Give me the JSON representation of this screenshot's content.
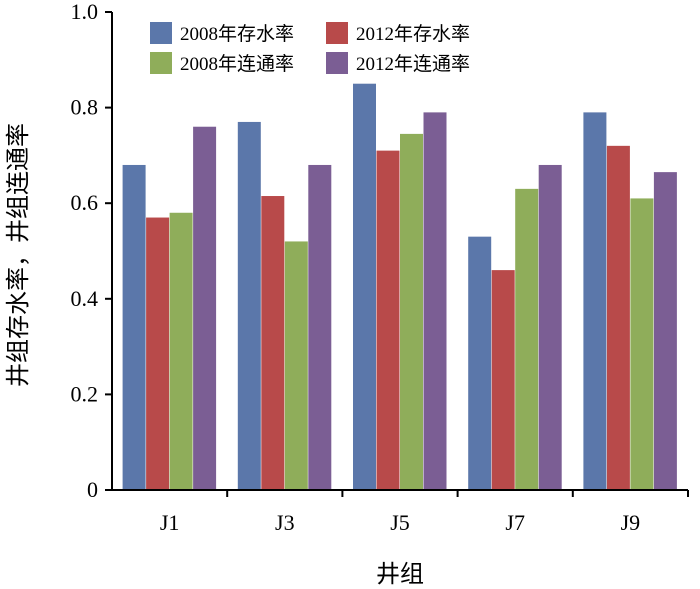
{
  "chart_data": {
    "type": "bar",
    "title": "",
    "xlabel": "井组",
    "ylabel": "井组存水率，井组连通率",
    "categories": [
      "J1",
      "J3",
      "J5",
      "J7",
      "J9"
    ],
    "ylim": [
      0,
      1.0
    ],
    "yticks": [
      "0",
      "0.2",
      "0.4",
      "0.6",
      "0.8",
      "1.0"
    ],
    "grid": false,
    "legend_position": "top",
    "series": [
      {
        "name": "2008年存水率",
        "color": "#5b77aa",
        "values": [
          0.68,
          0.77,
          0.85,
          0.53,
          0.79
        ]
      },
      {
        "name": "2012年存水率",
        "color": "#b84a4a",
        "values": [
          0.57,
          0.615,
          0.71,
          0.46,
          0.72
        ]
      },
      {
        "name": "2008年连通率",
        "color": "#8fad5a",
        "values": [
          0.58,
          0.52,
          0.745,
          0.63,
          0.61
        ]
      },
      {
        "name": "2012年连通率",
        "color": "#7b5e94",
        "values": [
          0.76,
          0.68,
          0.79,
          0.68,
          0.665
        ]
      }
    ]
  }
}
